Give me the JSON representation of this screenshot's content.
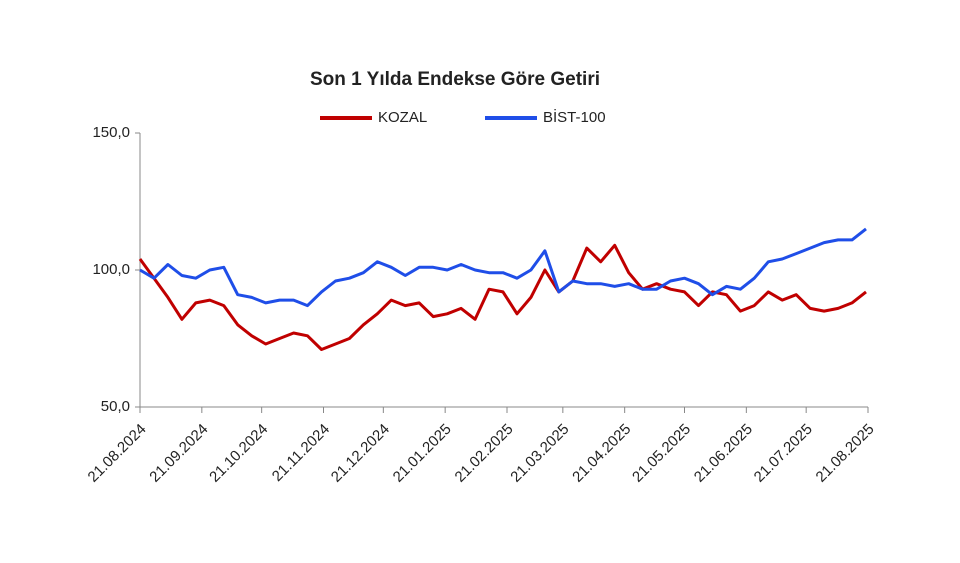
{
  "chart_data": {
    "type": "line",
    "title": "Son 1 Yılda Endekse Göre Getiri",
    "x": [
      "21.08.2024",
      "28.08.2024",
      "04.09.2024",
      "11.09.2024",
      "18.09.2024",
      "25.09.2024",
      "02.10.2024",
      "09.10.2024",
      "16.10.2024",
      "23.10.2024",
      "30.10.2024",
      "06.11.2024",
      "13.11.2024",
      "20.11.2024",
      "27.11.2024",
      "04.12.2024",
      "11.12.2024",
      "18.12.2024",
      "25.12.2024",
      "01.01.2025",
      "08.01.2025",
      "15.01.2025",
      "22.01.2025",
      "29.01.2025",
      "05.02.2025",
      "12.02.2025",
      "19.02.2025",
      "26.02.2025",
      "05.03.2025",
      "12.03.2025",
      "19.03.2025",
      "26.03.2025",
      "02.04.2025",
      "09.04.2025",
      "16.04.2025",
      "23.04.2025",
      "30.04.2025",
      "07.05.2025",
      "14.05.2025",
      "21.05.2025",
      "28.05.2025",
      "04.06.2025",
      "11.06.2025",
      "18.06.2025",
      "25.06.2025",
      "02.07.2025",
      "09.07.2025",
      "16.07.2025",
      "23.07.2025",
      "30.07.2025",
      "06.08.2025",
      "13.08.2025",
      "20.08.2025"
    ],
    "series": [
      {
        "name": "KOZAL",
        "color": "#c00000",
        "values": [
          104,
          97,
          90,
          82,
          88,
          89,
          87,
          80,
          76,
          73,
          75,
          77,
          76,
          71,
          73,
          75,
          80,
          84,
          89,
          87,
          88,
          83,
          84,
          86,
          82,
          93,
          92,
          84,
          90,
          100,
          92,
          96,
          108,
          103,
          109,
          99,
          93,
          95,
          93,
          92,
          87,
          92,
          91,
          85,
          87,
          92,
          89,
          91,
          86,
          85,
          86,
          88,
          92
        ]
      },
      {
        "name": "BİST-100",
        "color": "#1f4ee8",
        "values": [
          100,
          97,
          102,
          98,
          97,
          100,
          101,
          91,
          90,
          88,
          89,
          89,
          87,
          92,
          96,
          97,
          99,
          103,
          101,
          98,
          101,
          101,
          100,
          102,
          100,
          99,
          99,
          97,
          100,
          107,
          92,
          96,
          95,
          95,
          94,
          95,
          93,
          93,
          96,
          97,
          95,
          91,
          94,
          93,
          97,
          103,
          104,
          106,
          108,
          110,
          111,
          111,
          115
        ]
      }
    ],
    "xticks": [
      "21.08.2024",
      "21.09.2024",
      "21.10.2024",
      "21.11.2024",
      "21.12.2024",
      "21.01.2025",
      "21.02.2025",
      "21.03.2025",
      "21.04.2025",
      "21.05.2025",
      "21.06.2025",
      "21.07.2025",
      "21.08.2025"
    ],
    "ylim": [
      50,
      150
    ],
    "yticks": [
      {
        "value": 50,
        "label": "50,0"
      },
      {
        "value": 100,
        "label": "100,0"
      },
      {
        "value": 150,
        "label": "150,0"
      }
    ],
    "legend": "top"
  }
}
